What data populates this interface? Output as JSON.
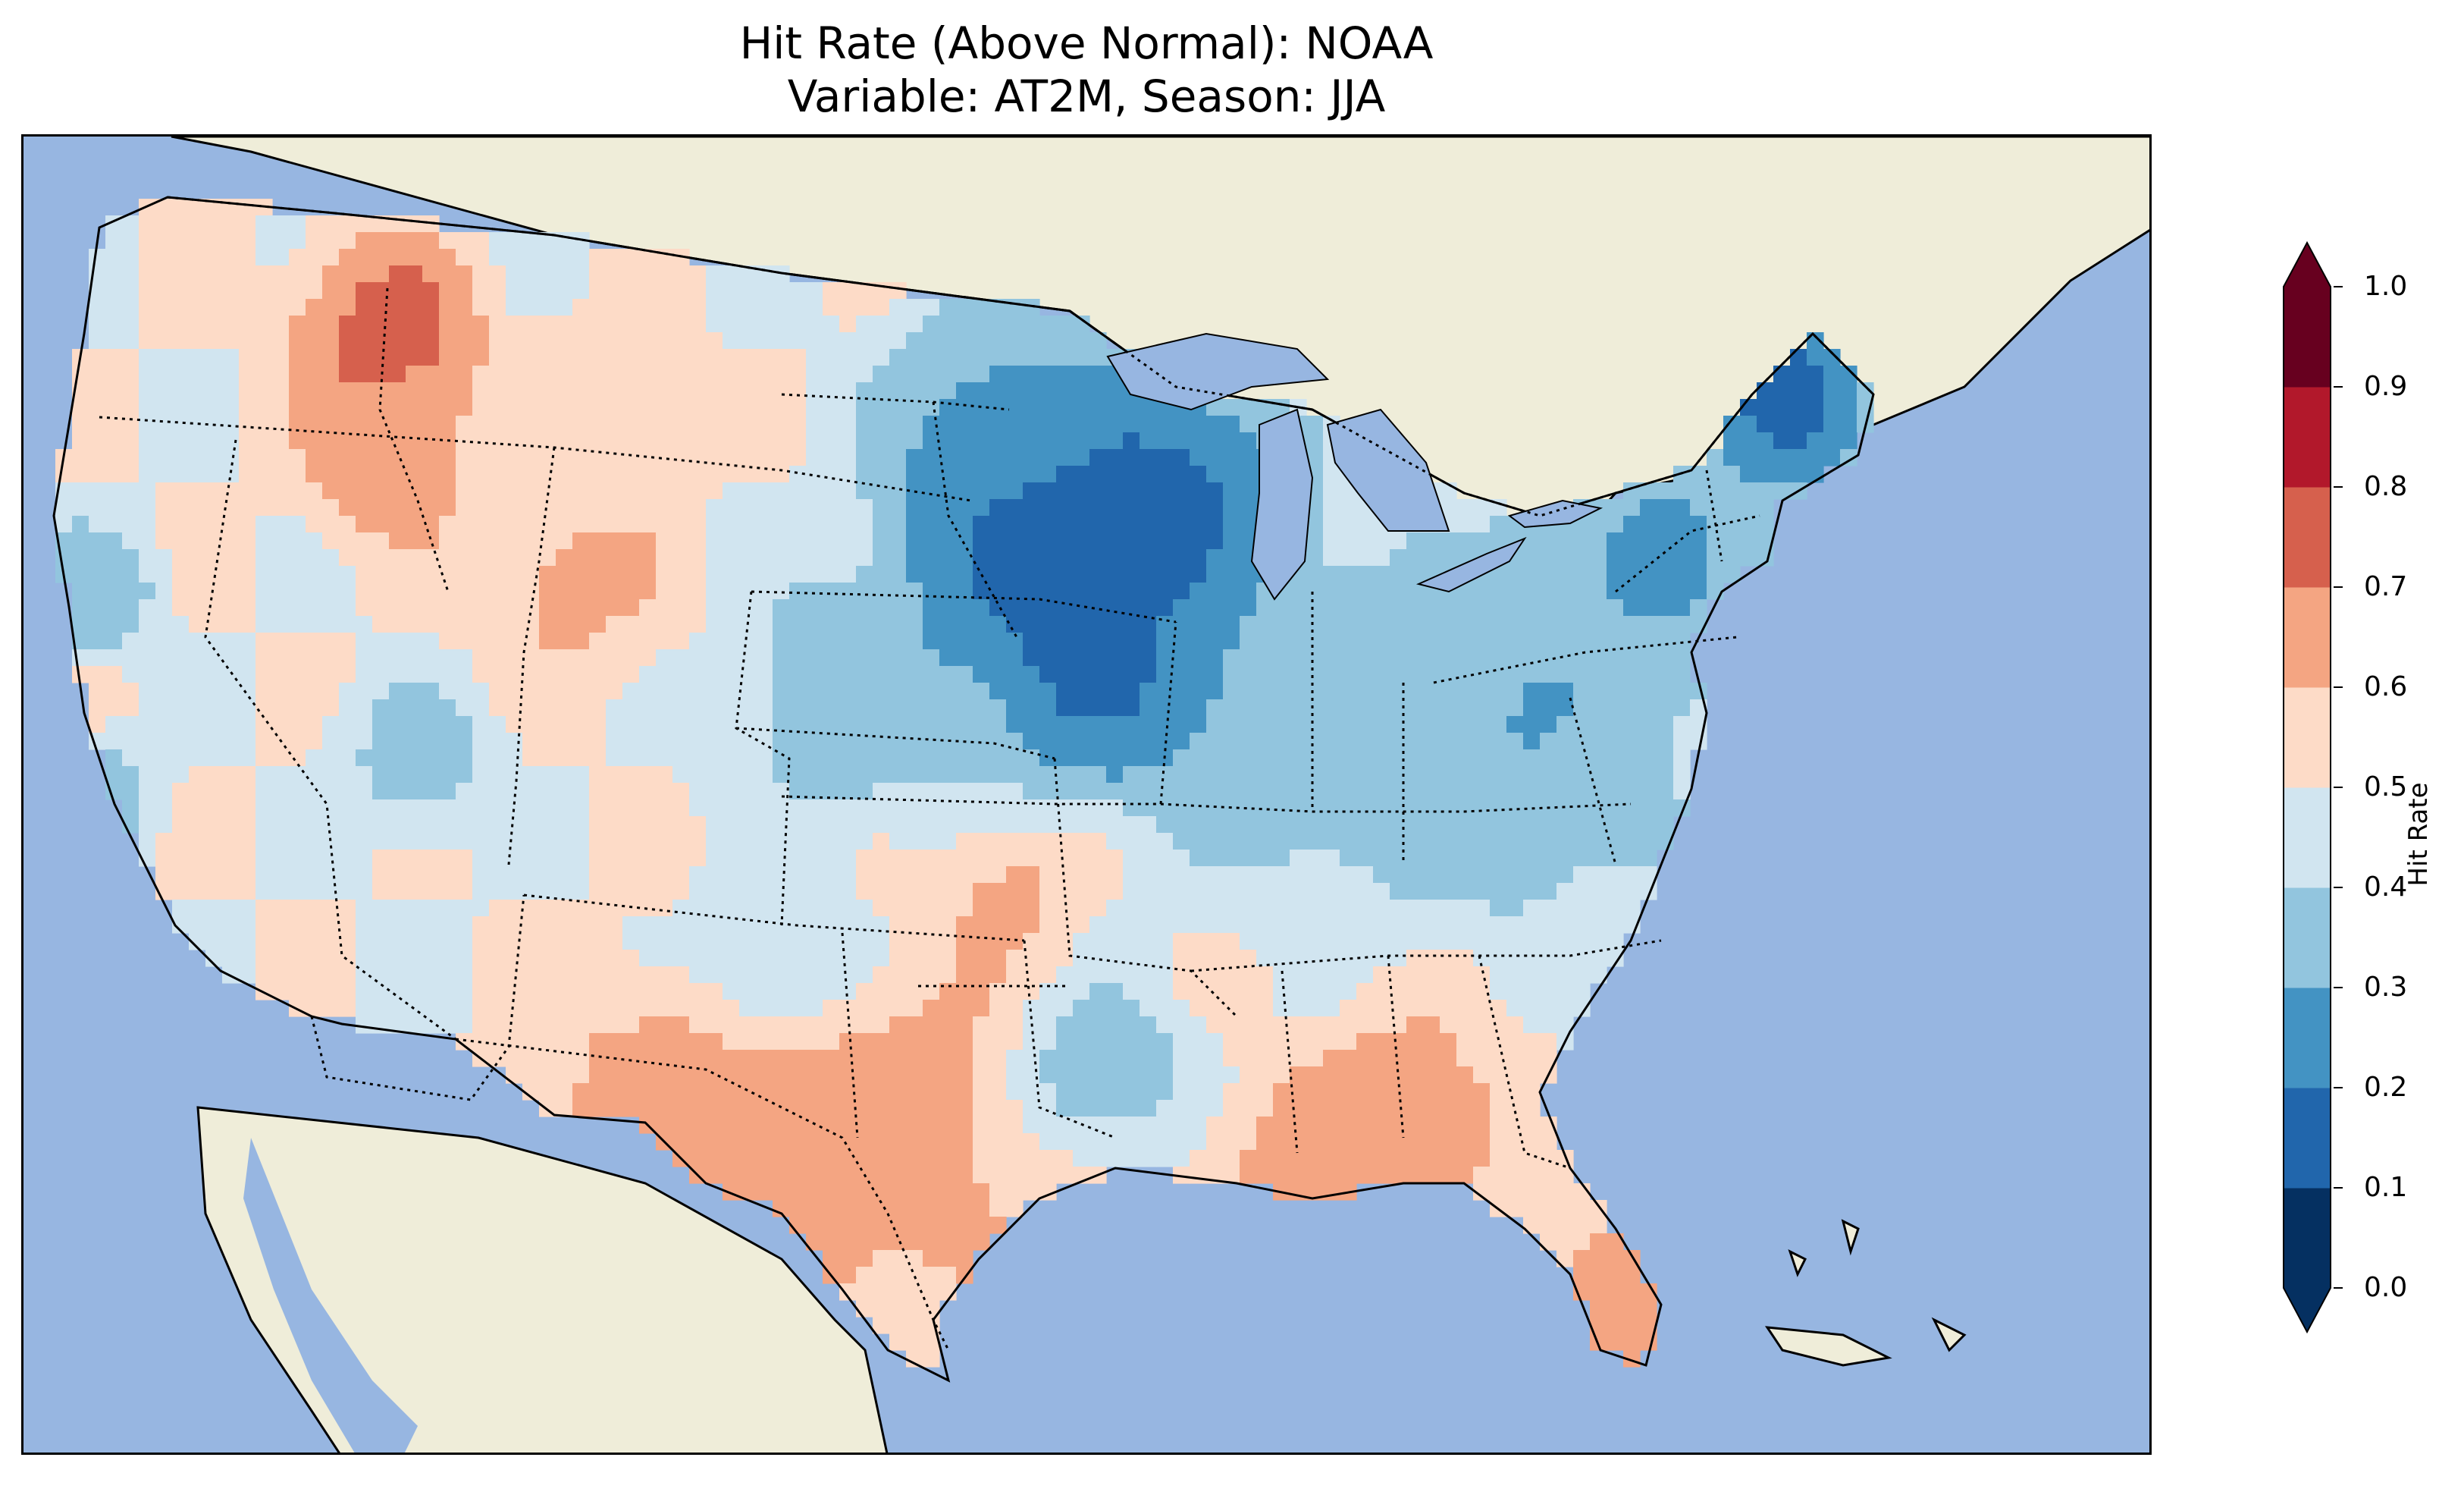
{
  "title": {
    "line1": "Hit Rate (Above Normal): NOAA",
    "line2": "Variable: AT2M, Season: JJA"
  },
  "map": {
    "region": "Contiguous United States",
    "ocean_color": "#97b6e1",
    "land_color": "#efedd9",
    "lake_color": "#97b6e1"
  },
  "colorbar": {
    "label": "Hit Rate",
    "ticks": [
      "0.0",
      "0.1",
      "0.2",
      "0.3",
      "0.4",
      "0.5",
      "0.6",
      "0.7",
      "0.8",
      "0.9",
      "1.0"
    ],
    "colors": [
      "#053061",
      "#2166ac",
      "#4393c3",
      "#92c5de",
      "#d1e5f0",
      "#fddbc7",
      "#f4a582",
      "#d6604d",
      "#b2182b",
      "#67001f"
    ],
    "extend": "both"
  },
  "chart_data": {
    "type": "heatmap",
    "title": "Hit Rate (Above Normal): NOAA\nVariable: AT2M, Season: JJA",
    "colorbar_label": "Hit Rate",
    "vmin": 0.0,
    "vmax": 1.0,
    "levels": [
      0.0,
      0.1,
      0.2,
      0.3,
      0.4,
      0.5,
      0.6,
      0.7,
      0.8,
      0.9,
      1.0
    ],
    "regional_values": [
      {
        "region": "Upper Midwest (MN/IA/WI)",
        "value": 0.05
      },
      {
        "region": "Northern Maine",
        "value": 0.05
      },
      {
        "region": "Great Lakes / Ohio Valley",
        "value": 0.25
      },
      {
        "region": "Northeast / NY / PA",
        "value": 0.25
      },
      {
        "region": "Texas",
        "value": 0.75
      },
      {
        "region": "Gulf Coast (LA/MS/AL)",
        "value": 0.75
      },
      {
        "region": "Florida",
        "value": 0.65
      },
      {
        "region": "Northern Idaho",
        "value": 0.85
      },
      {
        "region": "Pacific Northwest",
        "value": 0.55
      },
      {
        "region": "Great Basin / Southwest",
        "value": 0.45
      },
      {
        "region": "Southeast (GA/SC)",
        "value": 0.55
      }
    ]
  }
}
